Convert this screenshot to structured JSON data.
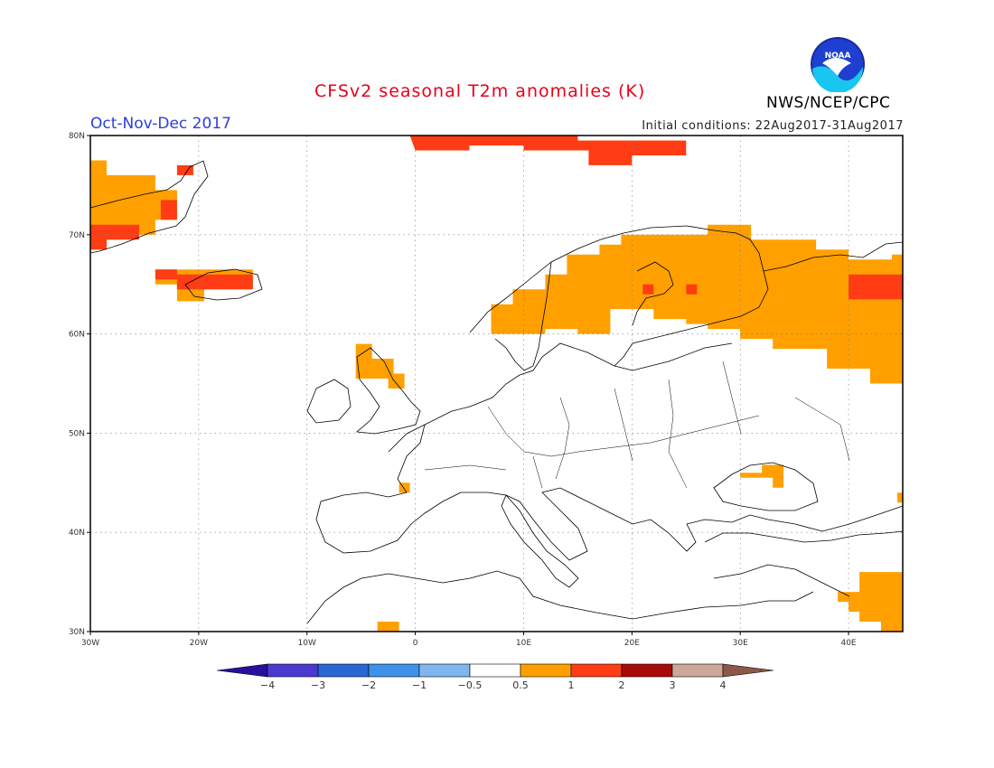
{
  "header": {
    "title": "CFSv2 seasonal T2m anomalies (K)",
    "period": "Oct-Nov-Dec 2017",
    "initial_conditions": "Initial conditions: 22Aug2017-31Aug2017",
    "org": "NWS/NCEP/CPC",
    "logo_text": "NOAA"
  },
  "map": {
    "lon_range": [
      -30,
      45
    ],
    "lat_range": [
      30,
      80
    ],
    "lat_labels": [
      {
        "lat": 80,
        "label": "80N"
      },
      {
        "lat": 70,
        "label": "70N"
      },
      {
        "lat": 60,
        "label": "60N"
      },
      {
        "lat": 50,
        "label": "50N"
      },
      {
        "lat": 40,
        "label": "40N"
      },
      {
        "lat": 30,
        "label": "30N"
      }
    ],
    "lon_labels": [
      {
        "lon": -30,
        "label": "30W"
      },
      {
        "lon": -20,
        "label": "20W"
      },
      {
        "lon": -10,
        "label": "10W"
      },
      {
        "lon": 0,
        "label": "0"
      },
      {
        "lon": 10,
        "label": "10E"
      },
      {
        "lon": 20,
        "label": "20E"
      },
      {
        "lon": 30,
        "label": "30E"
      },
      {
        "lon": 40,
        "label": "40E"
      }
    ],
    "grid": true,
    "anomaly_regions": [
      {
        "name": "greenland",
        "level": "0.5-1",
        "polygon": [
          [
            -30,
            77.5
          ],
          [
            -28.5,
            77.5
          ],
          [
            -28.5,
            76
          ],
          [
            -24,
            76
          ],
          [
            -24,
            74.5
          ],
          [
            -22,
            74.5
          ],
          [
            -22,
            71.5
          ],
          [
            -24,
            71.5
          ],
          [
            -24,
            70
          ],
          [
            -27,
            70
          ],
          [
            -27,
            69.5
          ],
          [
            -28.5,
            69.5
          ],
          [
            -28.5,
            68.5
          ],
          [
            -30,
            68.5
          ]
        ]
      },
      {
        "name": "greenland-warm-1",
        "level": "1-2",
        "polygon": [
          [
            -30,
            71
          ],
          [
            -25.5,
            71
          ],
          [
            -25.5,
            69.5
          ],
          [
            -28.5,
            69.5
          ],
          [
            -28.5,
            68.5
          ],
          [
            -30,
            68.5
          ]
        ]
      },
      {
        "name": "greenland-warm-2",
        "level": "1-2",
        "polygon": [
          [
            -23.5,
            73.5
          ],
          [
            -22,
            73.5
          ],
          [
            -22,
            71.5
          ],
          [
            -23.5,
            71.5
          ]
        ]
      },
      {
        "name": "greenland-warm-3",
        "level": "1-2",
        "polygon": [
          [
            -22,
            77
          ],
          [
            -20.5,
            77
          ],
          [
            -20.5,
            76
          ],
          [
            -22,
            76
          ]
        ]
      },
      {
        "name": "iceland",
        "level": "0.5-1",
        "polygon": [
          [
            -24,
            66.5
          ],
          [
            -15,
            66.5
          ],
          [
            -15,
            64.5
          ],
          [
            -19.5,
            64.5
          ],
          [
            -19.5,
            63.3
          ],
          [
            -22,
            63.3
          ],
          [
            -22,
            65
          ],
          [
            -24,
            65
          ]
        ]
      },
      {
        "name": "iceland-warm",
        "level": "1-2",
        "polygon": [
          [
            -22,
            66
          ],
          [
            -15,
            66
          ],
          [
            -15,
            64.5
          ],
          [
            -22,
            64.5
          ]
        ]
      },
      {
        "name": "iceland-warm-west",
        "level": "1-2",
        "polygon": [
          [
            -24,
            66.5
          ],
          [
            -22,
            66.5
          ],
          [
            -22,
            65.5
          ],
          [
            -24,
            65.5
          ]
        ]
      },
      {
        "name": "svalbard",
        "level": "1-2",
        "polygon": [
          [
            -0.5,
            80
          ],
          [
            15,
            80
          ],
          [
            15,
            79.5
          ],
          [
            25,
            79.5
          ],
          [
            25,
            78
          ],
          [
            20,
            78
          ],
          [
            20,
            77
          ],
          [
            16,
            77
          ],
          [
            16,
            78.5
          ],
          [
            10,
            78.5
          ],
          [
            10,
            79
          ],
          [
            5,
            79
          ],
          [
            5,
            78.5
          ],
          [
            0,
            78.5
          ]
        ]
      },
      {
        "name": "scotland",
        "level": "0.5-1",
        "polygon": [
          [
            -5.5,
            59
          ],
          [
            -4,
            59
          ],
          [
            -4,
            57.5
          ],
          [
            -2,
            57.5
          ],
          [
            -2,
            56
          ],
          [
            -1,
            56
          ],
          [
            -1,
            54.5
          ],
          [
            -2.5,
            54.5
          ],
          [
            -2.5,
            55.5
          ],
          [
            -5.5,
            55.5
          ]
        ]
      },
      {
        "name": "scandinavia-russia",
        "level": "0.5-1",
        "polygon": [
          [
            7,
            63
          ],
          [
            9,
            63
          ],
          [
            9,
            64.5
          ],
          [
            12,
            64.5
          ],
          [
            12,
            66
          ],
          [
            14,
            66
          ],
          [
            14,
            68
          ],
          [
            17,
            68
          ],
          [
            17,
            69
          ],
          [
            19,
            69
          ],
          [
            19,
            70
          ],
          [
            27,
            70
          ],
          [
            27,
            71
          ],
          [
            31,
            71
          ],
          [
            31,
            69.5
          ],
          [
            37,
            69.5
          ],
          [
            37,
            68.5
          ],
          [
            40,
            68.5
          ],
          [
            40,
            67.5
          ],
          [
            44,
            67.5
          ],
          [
            44,
            68
          ],
          [
            45,
            68
          ],
          [
            45,
            55
          ],
          [
            42,
            55
          ],
          [
            42,
            56.5
          ],
          [
            38,
            56.5
          ],
          [
            38,
            58.5
          ],
          [
            33,
            58.5
          ],
          [
            33,
            59.5
          ],
          [
            30,
            59.5
          ],
          [
            30,
            60.5
          ],
          [
            27,
            60.5
          ],
          [
            27,
            61
          ],
          [
            25,
            61
          ],
          [
            25,
            61.5
          ],
          [
            22,
            61.5
          ],
          [
            22,
            62.5
          ],
          [
            18,
            62.5
          ],
          [
            18,
            60
          ],
          [
            15,
            60
          ],
          [
            15,
            60.5
          ],
          [
            12,
            60.5
          ],
          [
            12,
            60
          ],
          [
            7,
            60
          ]
        ]
      },
      {
        "name": "kola-warm",
        "level": "1-2",
        "polygon": [
          [
            40,
            66
          ],
          [
            45,
            66
          ],
          [
            45,
            63.5
          ],
          [
            40,
            63.5
          ],
          [
            40,
            65
          ]
        ]
      },
      {
        "name": "finland-warm",
        "level": "1-2",
        "polygon": [
          [
            21,
            65
          ],
          [
            22,
            65
          ],
          [
            22,
            64
          ],
          [
            21,
            64
          ]
        ]
      },
      {
        "name": "baltic-warm",
        "level": "1-2",
        "polygon": [
          [
            25,
            65
          ],
          [
            26,
            65
          ],
          [
            26,
            64
          ],
          [
            25,
            64
          ]
        ]
      },
      {
        "name": "france-coast",
        "level": "0.5-1",
        "polygon": [
          [
            -1.5,
            45
          ],
          [
            -0.5,
            45
          ],
          [
            -0.5,
            44
          ],
          [
            -1.5,
            44
          ]
        ]
      },
      {
        "name": "crimea",
        "level": "0.5-1",
        "polygon": [
          [
            30,
            46
          ],
          [
            32,
            46
          ],
          [
            32,
            46.8
          ],
          [
            34,
            46.8
          ],
          [
            34,
            44.5
          ],
          [
            33,
            44.5
          ],
          [
            33,
            45.5
          ],
          [
            30,
            45.5
          ]
        ]
      },
      {
        "name": "caucasus",
        "level": "0.5-1",
        "polygon": [
          [
            44.5,
            44
          ],
          [
            45,
            44
          ],
          [
            45,
            43
          ],
          [
            44.5,
            43
          ]
        ]
      },
      {
        "name": "middle-east",
        "level": "0.5-1",
        "polygon": [
          [
            41,
            36
          ],
          [
            45,
            36
          ],
          [
            45,
            30
          ],
          [
            43,
            30
          ],
          [
            43,
            31
          ],
          [
            41,
            31
          ],
          [
            41,
            32
          ],
          [
            40,
            32
          ],
          [
            40,
            33
          ],
          [
            39,
            33
          ],
          [
            39,
            34
          ],
          [
            41,
            34
          ]
        ]
      },
      {
        "name": "morocco-coast",
        "level": "0.5-1",
        "polygon": [
          [
            -3.5,
            31
          ],
          [
            -1.5,
            31
          ],
          [
            -1.5,
            30
          ],
          [
            -3.5,
            30
          ]
        ]
      }
    ]
  },
  "colorbar": {
    "labels": [
      "−4",
      "−3",
      "−2",
      "−1",
      "−0.5",
      "0.5",
      "1",
      "2",
      "3",
      "4"
    ],
    "colors": [
      "#2a0e9e",
      "#4a3ad0",
      "#2a67d6",
      "#3e92e9",
      "#7fb6ef",
      "#ffffff",
      "#ffa000",
      "#ff3c14",
      "#a80a0a",
      "#cda89a",
      "#8c5848"
    ],
    "colors_key": "lowest-to-highest, first and last are extension triangles"
  },
  "colors": {
    "warm_0_5_1": "#ffa000",
    "warm_1_2": "#ff3c14",
    "title": "#e8001c",
    "period": "#2b3fd6"
  }
}
